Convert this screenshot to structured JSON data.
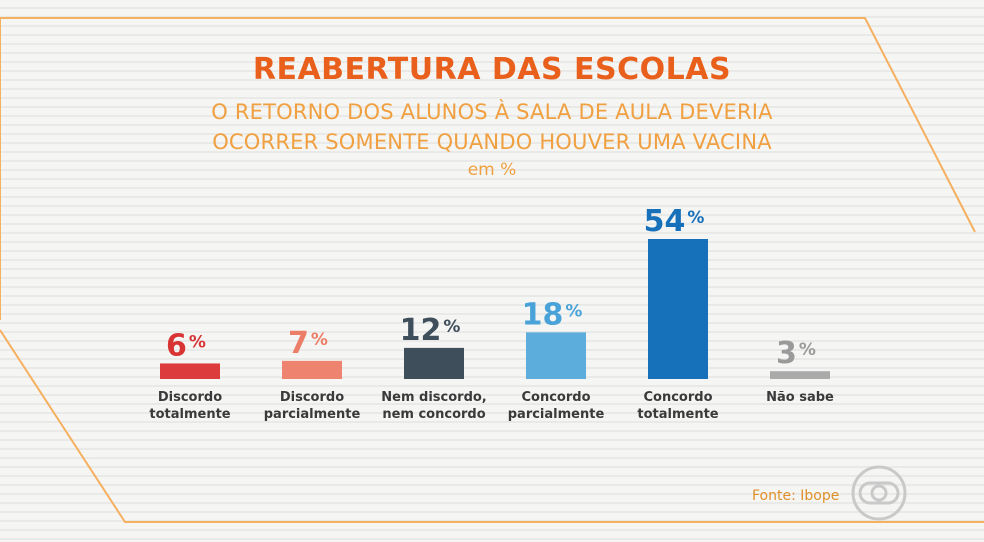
{
  "header": {
    "title": "REABERTURA DAS ESCOLAS",
    "subtitle_line1": "O RETORNO DOS ALUNOS À SALA DE AULA DEVERIA",
    "subtitle_line2": "OCORRER SOMENTE QUANDO HOUVER UMA VACINA",
    "unit": "em %"
  },
  "footer": {
    "source": "Fonte: Ibope",
    "logo_icon": "globo-logo-icon"
  },
  "chart_data": {
    "type": "bar",
    "title": "REABERTURA DAS ESCOLAS",
    "xlabel": "",
    "ylabel": "",
    "ylim": [
      0,
      54
    ],
    "grid": false,
    "percent_sign": "%",
    "categories": [
      [
        "Discordo",
        "totalmente"
      ],
      [
        "Discordo",
        "parcialmente"
      ],
      [
        "Nem discordo,",
        "nem concordo"
      ],
      [
        "Concordo",
        "parcialmente"
      ],
      [
        "Concordo",
        "totalmente"
      ],
      [
        "Não sabe"
      ]
    ],
    "values": [
      6,
      7,
      12,
      18,
      54,
      3
    ],
    "colors": [
      "#dc3c3c",
      "#ee8470",
      "#3e4e5b",
      "#5caddc",
      "#1770ba",
      "#aaaaaa"
    ],
    "label_colors": [
      "#d83434",
      "#ec7e68",
      "#3e4e5b",
      "#4aa3d8",
      "#1770ba",
      "#9a9a9a"
    ]
  }
}
